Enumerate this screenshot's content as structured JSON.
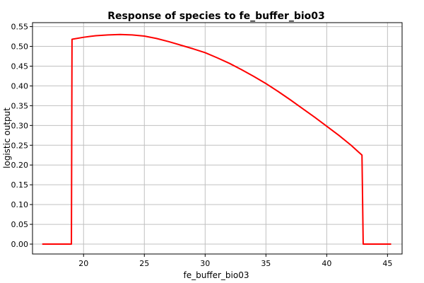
{
  "chart_data": {
    "type": "line",
    "title": "Response of species to fe_buffer_bio03",
    "xlabel": "fe_buffer_bio03",
    "ylabel": "logistic output",
    "xlim": [
      15.8,
      46.2
    ],
    "ylim": [
      -0.025,
      0.56
    ],
    "xticks": [
      20,
      25,
      30,
      35,
      40,
      45
    ],
    "yticks": [
      0.0,
      0.05,
      0.1,
      0.15,
      0.2,
      0.25,
      0.3,
      0.35,
      0.4,
      0.45,
      0.5,
      0.55
    ],
    "ytick_labels": [
      "0.00",
      "0.05",
      "0.10",
      "0.15",
      "0.20",
      "0.25",
      "0.30",
      "0.35",
      "0.40",
      "0.45",
      "0.50",
      "0.55"
    ],
    "grid": true,
    "legend": "none",
    "series": [
      {
        "color": "#ff0000",
        "x": [
          16.6,
          19.0,
          19.05,
          20.0,
          21.0,
          22.0,
          23.0,
          24.0,
          25.0,
          26.0,
          27.0,
          28.0,
          29.0,
          30.0,
          31.0,
          32.0,
          33.0,
          34.0,
          35.0,
          36.0,
          37.0,
          38.0,
          39.0,
          40.0,
          41.0,
          42.0,
          42.9,
          43.0,
          45.3
        ],
        "y": [
          0.0,
          0.0,
          0.518,
          0.523,
          0.527,
          0.529,
          0.53,
          0.529,
          0.526,
          0.52,
          0.512,
          0.503,
          0.494,
          0.484,
          0.471,
          0.457,
          0.441,
          0.424,
          0.406,
          0.386,
          0.365,
          0.343,
          0.321,
          0.298,
          0.275,
          0.25,
          0.225,
          0.0,
          0.0
        ]
      }
    ]
  }
}
